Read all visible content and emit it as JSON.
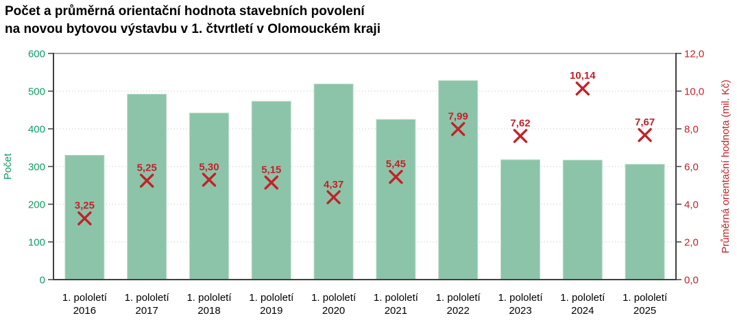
{
  "title": {
    "line1": "Počet a průměrná orientační hodnota stavebních povolení",
    "line2": "na novou bytovou výstavbu v 1. čtvrtletí v Olomouckém kraji"
  },
  "chart_data": {
    "type": "bar",
    "subtype": "combo: bars (left axis) + X scatter markers with data labels (right axis)",
    "legend": "none",
    "grid": "horizontal dotted gridlines",
    "categories": [
      {
        "line1": "1. pololetí",
        "line2": "2016"
      },
      {
        "line1": "1. pololetí",
        "line2": "2017"
      },
      {
        "line1": "1. pololetí",
        "line2": "2018"
      },
      {
        "line1": "1. pololetí",
        "line2": "2019"
      },
      {
        "line1": "1. pololetí",
        "line2": "2020"
      },
      {
        "line1": "1. pololetí",
        "line2": "2021"
      },
      {
        "line1": "1. pololetí",
        "line2": "2022"
      },
      {
        "line1": "1. pololetí",
        "line2": "2023"
      },
      {
        "line1": "1. pololetí",
        "line2": "2024"
      },
      {
        "line1": "1. pololetí",
        "line2": "2025"
      }
    ],
    "series": [
      {
        "name": "Počet",
        "chart_type": "bar",
        "axis": "left",
        "color": "#8CC4A9",
        "values": [
          330,
          492,
          442,
          473,
          519,
          425,
          528,
          318,
          317,
          306
        ]
      },
      {
        "name": "Průměrná orientační hodnota (mil. Kč)",
        "chart_type": "scatter",
        "marker": "x",
        "axis": "right",
        "color": "#C32128",
        "values": [
          3.25,
          5.25,
          5.3,
          5.15,
          4.37,
          5.45,
          7.99,
          7.62,
          10.14,
          7.67
        ],
        "value_labels": [
          "3,25",
          "5,25",
          "5,30",
          "5,15",
          "4,37",
          "5,45",
          "7,99",
          "7,62",
          "10,14",
          "7,67"
        ]
      }
    ],
    "axes": {
      "left": {
        "title": "Počet",
        "min": 0,
        "max": 600,
        "step": 100,
        "tick_labels": [
          "0",
          "100",
          "200",
          "300",
          "400",
          "500",
          "600"
        ],
        "color": "#0F9C63"
      },
      "right": {
        "title": "Průměrná orientační hodnota (mil. Kč)",
        "min": 0,
        "max": 12,
        "step": 2,
        "tick_labels": [
          "0,0",
          "2,0",
          "4,0",
          "6,0",
          "8,0",
          "10,0",
          "12,0"
        ],
        "color": "#C32128"
      }
    }
  }
}
